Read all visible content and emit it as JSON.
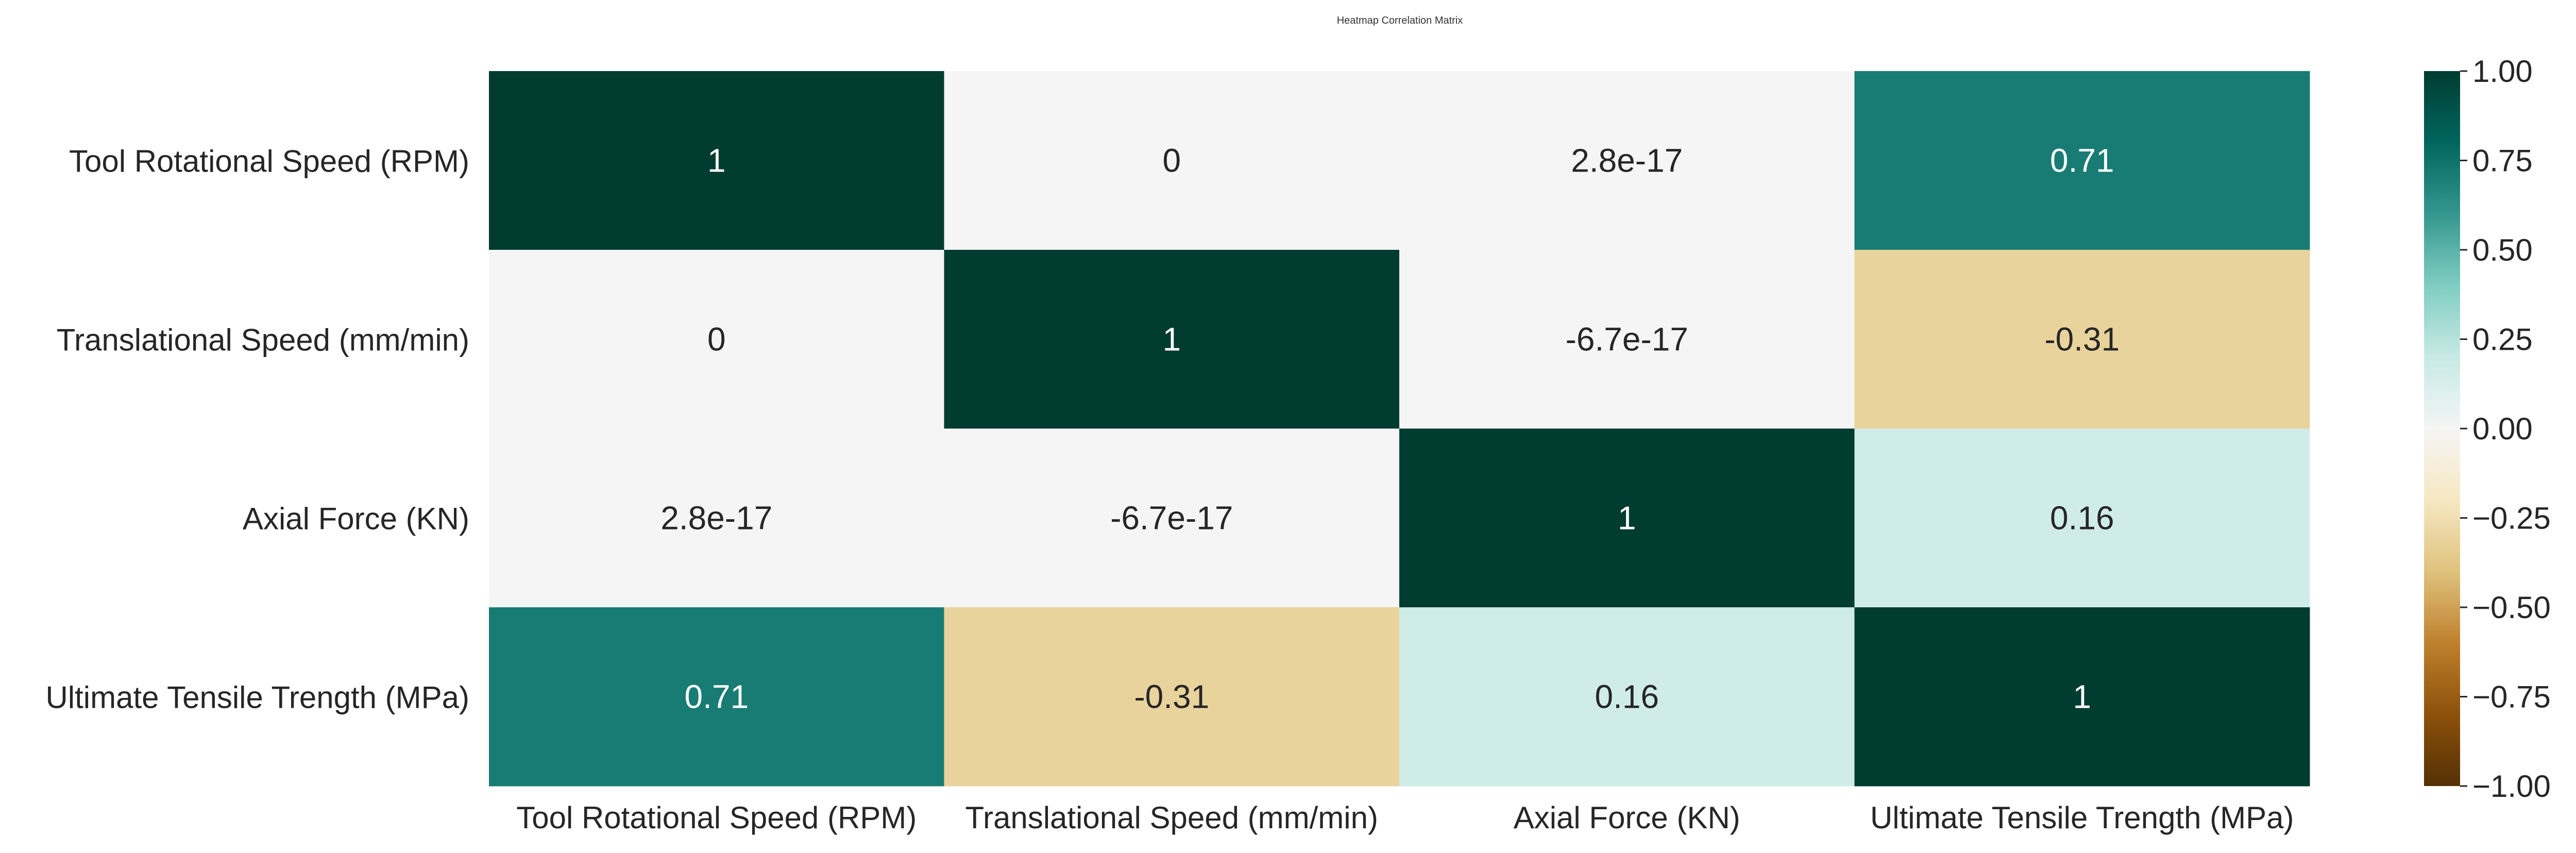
{
  "chart_data": {
    "type": "heatmap",
    "title": "Heatmap Correlation Matrix",
    "row_labels": [
      "Tool Rotational Speed (RPM)",
      "Translational Speed (mm/min)",
      "Axial Force (KN)",
      "Ultimate Tensile Trength (MPa)"
    ],
    "col_labels": [
      "Tool Rotational Speed (RPM)",
      "Translational Speed (mm/min)",
      "Axial Force (KN)",
      "Ultimate Tensile Trength (MPa)"
    ],
    "values": [
      [
        1,
        0,
        2.8e-17,
        0.71
      ],
      [
        0,
        1,
        -6.7e-17,
        -0.31
      ],
      [
        2.8e-17,
        -6.7e-17,
        1,
        0.16
      ],
      [
        0.71,
        -0.31,
        0.16,
        1
      ]
    ],
    "annotations": [
      [
        "1",
        "0",
        "2.8e-17",
        "0.71"
      ],
      [
        "0",
        "1",
        "-6.7e-17",
        "-0.31"
      ],
      [
        "2.8e-17",
        "-6.7e-17",
        "1",
        "0.16"
      ],
      [
        "0.71",
        "-0.31",
        "0.16",
        "1"
      ]
    ],
    "colormap": "BrBG",
    "vmin": -1,
    "vmax": 1,
    "colorbar_ticks": [
      1.0,
      0.75,
      0.5,
      0.25,
      0.0,
      -0.25,
      -0.5,
      -0.75,
      -1.0
    ],
    "colorbar_tick_labels": [
      "1.00",
      "0.75",
      "0.50",
      "0.25",
      "0.00",
      "−0.25",
      "−0.50",
      "−0.75",
      "−1.00"
    ],
    "colorbar_stops": [
      "#543005",
      "#8c510a",
      "#bf812d",
      "#dfc27d",
      "#f6e8c3",
      "#f5f5f5",
      "#c7eae5",
      "#80cdc1",
      "#35978f",
      "#01665e",
      "#003c30"
    ],
    "grid": false,
    "legend": "colorbar right"
  }
}
